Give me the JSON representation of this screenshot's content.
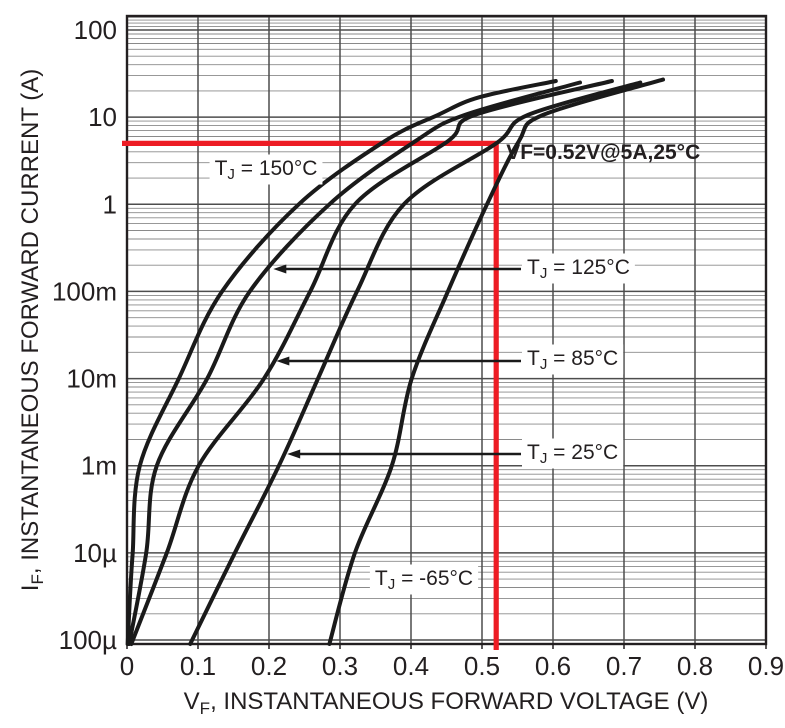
{
  "chart_data": {
    "type": "line",
    "title": "",
    "xlabel_pre": "V",
    "xlabel_sub": "F",
    "xlabel_post": ", INSTANTANEOUS FORWARD VOLTAGE (V)",
    "ylabel_pre": "I",
    "ylabel_sub": "F",
    "ylabel_post": ", INSTANTANEOUS FORWARD CURRENT (A)",
    "x_ticks": [
      "0",
      "0.1",
      "0.2",
      "0.3",
      "0.4",
      "0.5",
      "0.6",
      "0.7",
      "0.8",
      "0.9"
    ],
    "y_ticks": [
      "100",
      "10",
      "1",
      "100m",
      "10m",
      "1m",
      "10µ",
      "100µ"
    ],
    "x_range": [
      0,
      0.9
    ],
    "y_scale": "log",
    "y_top_value_amps": 100,
    "y_decades": 7,
    "grid": "log-major-minor",
    "legend_position": "inline-labels",
    "series": [
      {
        "name": "TJ = 150°C",
        "label_pre": "T",
        "label_sub": "J",
        "label_post": " = 150°C",
        "color": "#1a1a1a",
        "points": [
          [
            0.001,
            9e-06
          ],
          [
            0.004,
            2.9e-05
          ],
          [
            0.008,
            0.0001
          ],
          [
            0.018,
            0.001
          ],
          [
            0.073,
            0.01
          ],
          [
            0.134,
            0.1
          ],
          [
            0.242,
            1
          ],
          [
            0.363,
            5.3
          ],
          [
            0.438,
            10.6
          ],
          [
            0.497,
            17
          ],
          [
            0.604,
            26
          ]
        ]
      },
      {
        "name": "TJ = 125°C",
        "label_pre": "T",
        "label_sub": "J",
        "label_post": " = 125°C",
        "color": "#1a1a1a",
        "points": [
          [
            0.003,
            9e-06
          ],
          [
            0.027,
            0.0001
          ],
          [
            0.042,
            0.001
          ],
          [
            0.113,
            0.01
          ],
          [
            0.173,
            0.1
          ],
          [
            0.285,
            1
          ],
          [
            0.406,
            5.3
          ],
          [
            0.476,
            10.6
          ],
          [
            0.638,
            25
          ]
        ]
      },
      {
        "name": "TJ = 85°C",
        "label_pre": "T",
        "label_sub": "J",
        "label_post": " = 85°C",
        "color": "#1a1a1a",
        "points": [
          [
            0.006,
            9e-06
          ],
          [
            0.056,
            0.0001
          ],
          [
            0.101,
            0.001
          ],
          [
            0.193,
            0.01
          ],
          [
            0.258,
            0.1
          ],
          [
            0.321,
            1
          ],
          [
            0.452,
            5.3
          ],
          [
            0.49,
            10.6
          ],
          [
            0.683,
            26
          ]
        ]
      },
      {
        "name": "TJ = 25°C",
        "label_pre": "T",
        "label_sub": "J",
        "label_post": " = 25°C",
        "color": "#1a1a1a",
        "points": [
          [
            0.089,
            9e-06
          ],
          [
            0.152,
            0.0001
          ],
          [
            0.214,
            0.001
          ],
          [
            0.269,
            0.01
          ],
          [
            0.324,
            0.1
          ],
          [
            0.39,
            1
          ],
          [
            0.52,
            5
          ],
          [
            0.565,
            10.6
          ],
          [
            0.723,
            25
          ]
        ]
      },
      {
        "name": "TJ = -65°C",
        "label_pre": "T",
        "label_sub": "J",
        "label_post": " = -65°C",
        "color": "#1a1a1a",
        "points": [
          [
            0.285,
            9e-06
          ],
          [
            0.321,
            0.0001
          ],
          [
            0.373,
            0.001
          ],
          [
            0.401,
            0.01
          ],
          [
            0.452,
            0.1
          ],
          [
            0.507,
            1
          ],
          [
            0.552,
            5.3
          ],
          [
            0.586,
            10.6
          ],
          [
            0.755,
            27
          ]
        ]
      }
    ],
    "annotation": {
      "text": "VF=0.52V@5A,25°C",
      "vf_volts": 0.52,
      "if_amps": 5,
      "color": "#ed1c24"
    }
  },
  "colors": {
    "curve": "#1a1a1a",
    "grid_minor": "#8a8a8a",
    "grid_major": "#4d4d4d",
    "border": "#231f20",
    "annotation_red": "#ed1c24",
    "label_bg": "#ffffff"
  }
}
